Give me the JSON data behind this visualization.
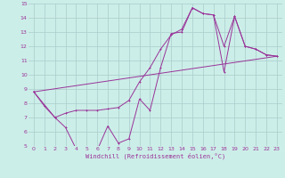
{
  "xlabel": "Windchill (Refroidissement éolien,°C)",
  "bg_color": "#cceee8",
  "grid_color": "#aacccc",
  "line_color": "#993399",
  "xlim": [
    -0.5,
    23.5
  ],
  "ylim": [
    5,
    15
  ],
  "xticks": [
    0,
    1,
    2,
    3,
    4,
    5,
    6,
    7,
    8,
    9,
    10,
    11,
    12,
    13,
    14,
    15,
    16,
    17,
    18,
    19,
    20,
    21,
    22,
    23
  ],
  "yticks": [
    5,
    6,
    7,
    8,
    9,
    10,
    11,
    12,
    13,
    14,
    15
  ],
  "line1_x": [
    0,
    1,
    2,
    3,
    4,
    5,
    6,
    7,
    8,
    9,
    10,
    11,
    12,
    13,
    14,
    15,
    16,
    17,
    18,
    19,
    20,
    21,
    22,
    23
  ],
  "line1_y": [
    8.8,
    7.8,
    7.0,
    7.3,
    7.5,
    7.5,
    7.5,
    7.6,
    7.7,
    8.2,
    9.5,
    10.5,
    11.8,
    12.8,
    13.2,
    14.7,
    14.3,
    14.2,
    12.0,
    14.1,
    12.0,
    11.8,
    11.4,
    11.3
  ],
  "line2_x": [
    0,
    2,
    3,
    4,
    5,
    6,
    7,
    8,
    9,
    10,
    11,
    12,
    13,
    14,
    15,
    16,
    17,
    18,
    19,
    20,
    21,
    22,
    23
  ],
  "line2_y": [
    8.8,
    7.0,
    6.3,
    4.8,
    4.7,
    4.7,
    6.4,
    5.2,
    5.5,
    8.3,
    7.5,
    10.5,
    12.9,
    13.0,
    14.7,
    14.3,
    14.2,
    10.2,
    14.1,
    12.0,
    11.8,
    11.4,
    11.3
  ],
  "line3_x": [
    0,
    23
  ],
  "line3_y": [
    8.8,
    11.3
  ]
}
